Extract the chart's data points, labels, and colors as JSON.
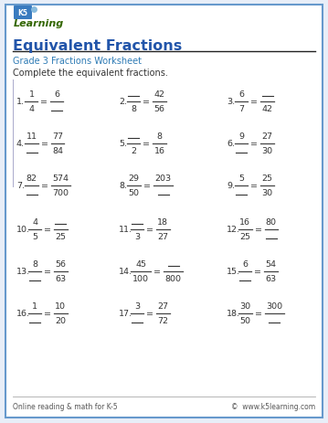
{
  "title": "Equivalent Fractions",
  "subtitle": "Grade 3 Fractions Worksheet",
  "instruction": "Complete the equivalent fractions.",
  "title_color": "#2255aa",
  "subtitle_color": "#2e7bb5",
  "border_color": "#6699cc",
  "background_color": "#ffffff",
  "page_bg": "#e8eef8",
  "footer_left": "Online reading & math for K-5",
  "footer_right": "©  www.k5learning.com",
  "problems": [
    {
      "num": "1.",
      "left_num": "1",
      "left_den": "4",
      "right_num": "6",
      "right_den": "",
      "missing": "right_den"
    },
    {
      "num": "2.",
      "left_num": "",
      "left_den": "8",
      "right_num": "42",
      "right_den": "56",
      "missing": "left_num"
    },
    {
      "num": "3.",
      "left_num": "6",
      "left_den": "7",
      "right_num": "",
      "right_den": "42",
      "missing": "right_num"
    },
    {
      "num": "4.",
      "left_num": "11",
      "left_den": "",
      "right_num": "77",
      "right_den": "84",
      "missing": "left_den"
    },
    {
      "num": "5.",
      "left_num": "",
      "left_den": "2",
      "right_num": "8",
      "right_den": "16",
      "missing": "left_num"
    },
    {
      "num": "6.",
      "left_num": "9",
      "left_den": "",
      "right_num": "27",
      "right_den": "30",
      "missing": "left_den"
    },
    {
      "num": "7.",
      "left_num": "82",
      "left_den": "",
      "right_num": "574",
      "right_den": "700",
      "missing": "left_den"
    },
    {
      "num": "8.",
      "left_num": "29",
      "left_den": "50",
      "right_num": "203",
      "right_den": "",
      "missing": "right_den"
    },
    {
      "num": "9.",
      "left_num": "5",
      "left_den": "",
      "right_num": "25",
      "right_den": "30",
      "missing": "left_den"
    },
    {
      "num": "10.",
      "left_num": "4",
      "left_den": "5",
      "right_num": "",
      "right_den": "25",
      "missing": "right_num"
    },
    {
      "num": "11.",
      "left_num": "",
      "left_den": "3",
      "right_num": "18",
      "right_den": "27",
      "missing": "left_num"
    },
    {
      "num": "12.",
      "left_num": "16",
      "left_den": "25",
      "right_num": "80",
      "right_den": "",
      "missing": "right_den"
    },
    {
      "num": "13.",
      "left_num": "8",
      "left_den": "",
      "right_num": "56",
      "right_den": "63",
      "missing": "left_den"
    },
    {
      "num": "14.",
      "left_num": "45",
      "left_den": "100",
      "right_num": "",
      "right_den": "800",
      "missing": "right_num"
    },
    {
      "num": "15.",
      "left_num": "6",
      "left_den": "",
      "right_num": "54",
      "right_den": "63",
      "missing": "left_den"
    },
    {
      "num": "16.",
      "left_num": "1",
      "left_den": "",
      "right_num": "10",
      "right_den": "20",
      "missing": "left_den"
    },
    {
      "num": "17.",
      "left_num": "3",
      "left_den": "",
      "right_num": "27",
      "right_den": "72",
      "missing": "left_den"
    },
    {
      "num": "18.",
      "left_num": "30",
      "left_den": "50",
      "right_num": "300",
      "right_den": "",
      "missing": "right_den"
    }
  ]
}
